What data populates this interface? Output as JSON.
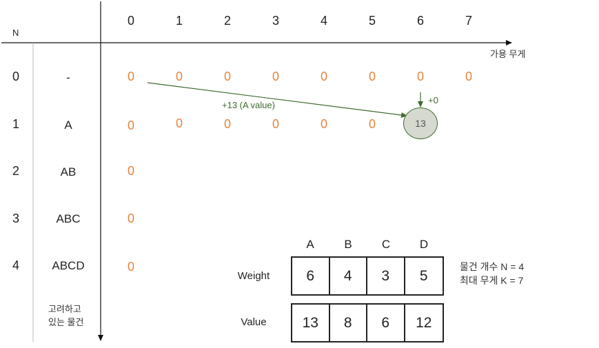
{
  "axis": {
    "n_label": "N",
    "x_label": "가용 무게",
    "y_label_line1": "고려하고",
    "y_label_line2": "있는 물건"
  },
  "capacities": [
    "0",
    "1",
    "2",
    "3",
    "4",
    "5",
    "6",
    "7"
  ],
  "rows": [
    {
      "n": "0",
      "items": "-",
      "cells": [
        "0",
        "0",
        "0",
        "0",
        "0",
        "0",
        "0",
        "0"
      ]
    },
    {
      "n": "1",
      "items": "A",
      "cells": [
        "0",
        "0",
        "0",
        "0",
        "0",
        "0"
      ]
    },
    {
      "n": "2",
      "items": "AB",
      "cells": [
        "0"
      ]
    },
    {
      "n": "3",
      "items": "ABC",
      "cells": [
        "0"
      ]
    },
    {
      "n": "4",
      "items": "ABCD",
      "cells": [
        "0"
      ]
    }
  ],
  "highlight": {
    "value": "13",
    "arrow_label": "+13 (A value)",
    "down_label": "+0"
  },
  "items_table": {
    "headers": [
      "A",
      "B",
      "C",
      "D"
    ],
    "weight_label": "Weight",
    "value_label": "Value",
    "weights": [
      "6",
      "4",
      "3",
      "5"
    ],
    "values": [
      "13",
      "8",
      "6",
      "12"
    ]
  },
  "info": {
    "line1": "물건 개수 N = 4",
    "line2": "최대 무게 K = 7"
  },
  "colors": {
    "cell": "#e8823a",
    "arrow": "#3f6a2e",
    "circle_fill": "#d5d9cf"
  }
}
